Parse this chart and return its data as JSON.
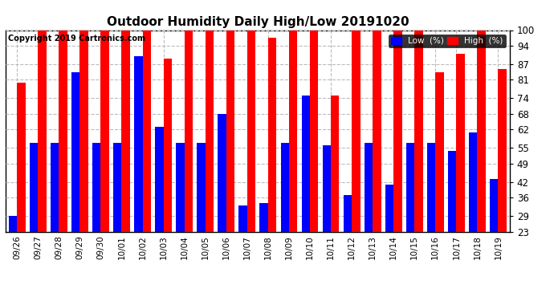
{
  "title": "Outdoor Humidity Daily High/Low 20191020",
  "copyright": "Copyright 2019 Cartronics.com",
  "dates": [
    "09/26",
    "09/27",
    "09/28",
    "09/29",
    "09/30",
    "10/01",
    "10/02",
    "10/03",
    "10/04",
    "10/05",
    "10/06",
    "10/07",
    "10/08",
    "10/09",
    "10/10",
    "10/11",
    "10/12",
    "10/13",
    "10/14",
    "10/15",
    "10/16",
    "10/17",
    "10/18",
    "10/19"
  ],
  "high": [
    80,
    100,
    100,
    100,
    100,
    100,
    100,
    89,
    100,
    100,
    100,
    100,
    97,
    100,
    100,
    75,
    100,
    100,
    100,
    100,
    84,
    91,
    100,
    85
  ],
  "low": [
    29,
    57,
    57,
    84,
    57,
    57,
    90,
    63,
    57,
    57,
    68,
    33,
    34,
    57,
    75,
    56,
    37,
    57,
    41,
    57,
    57,
    54,
    61,
    43
  ],
  "ylim_min": 23,
  "ylim_max": 100,
  "yticks": [
    23,
    29,
    36,
    42,
    49,
    55,
    62,
    68,
    74,
    81,
    87,
    94,
    100
  ],
  "bar_width": 0.4,
  "low_color": "#0000ff",
  "high_color": "#ff0000",
  "background_color": "#ffffff",
  "grid_color": "#bbbbbb",
  "legend_low_label": "Low  (%)",
  "legend_high_label": "High  (%)"
}
